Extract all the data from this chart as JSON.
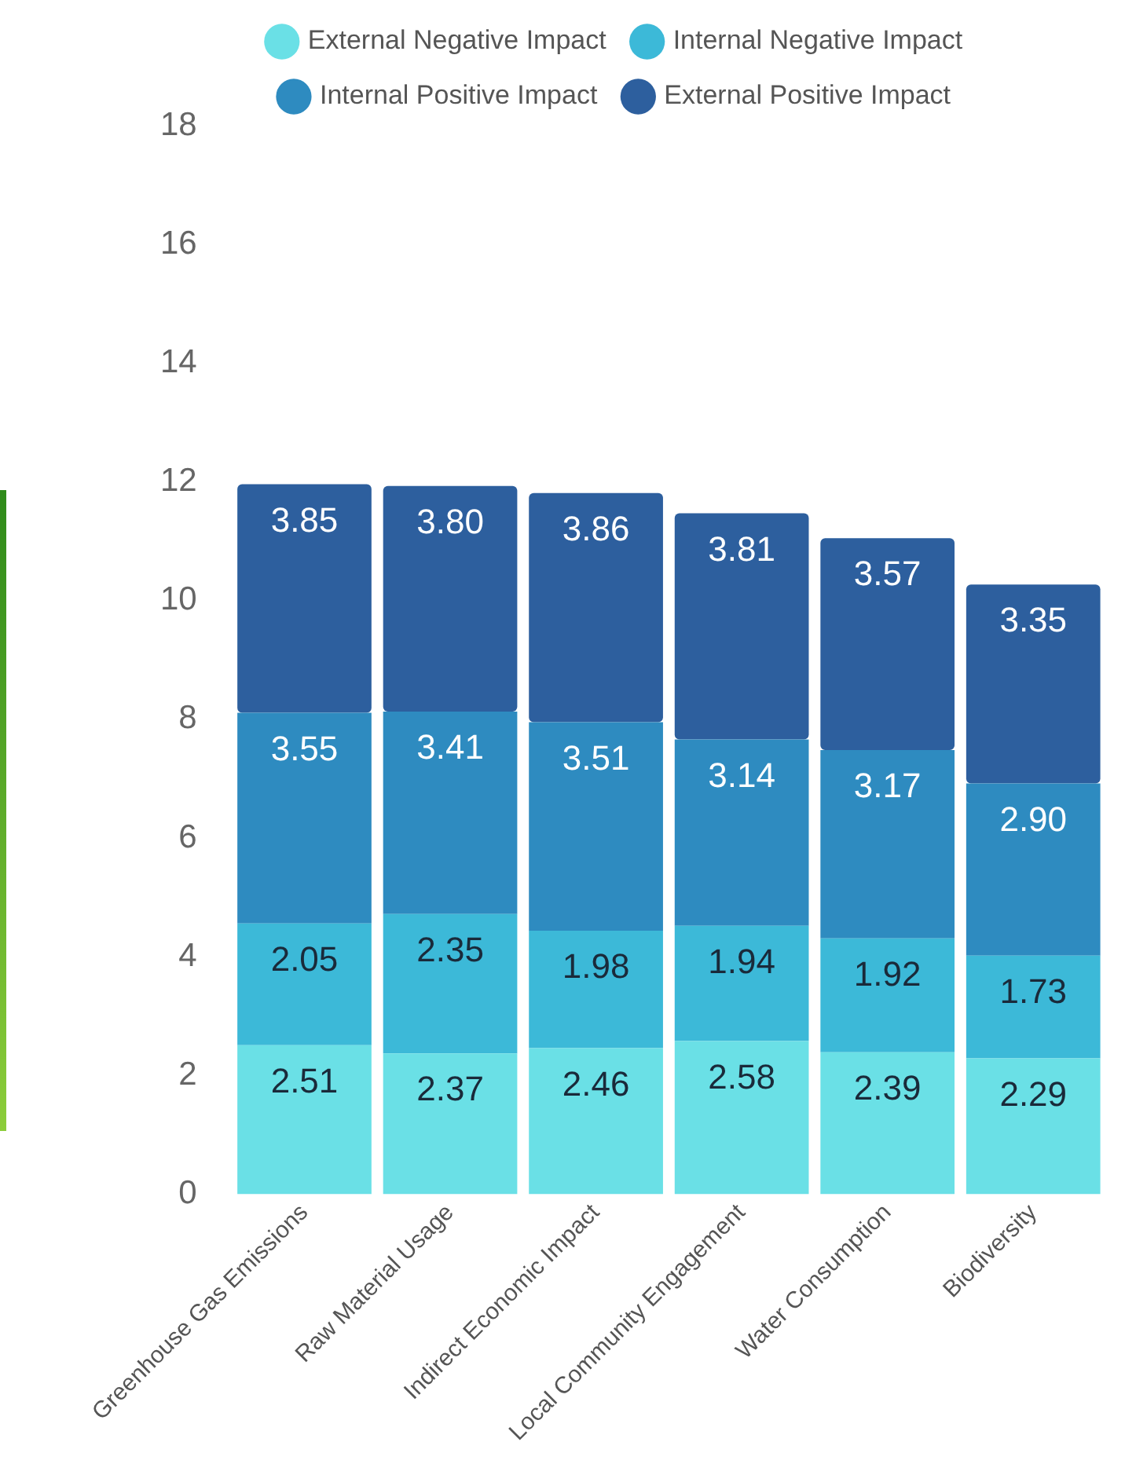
{
  "chart_data": {
    "type": "bar",
    "stacked": true,
    "categories": [
      "Greenhouse Gas Emissions",
      "Raw Material Usage",
      "Indirect Economic Impact",
      "Local Community Engagement",
      "Water Consumption",
      "Biodiversity"
    ],
    "series": [
      {
        "name": "External Negative Impact",
        "color": "#6ae0e6",
        "values": [
          2.51,
          2.37,
          2.46,
          2.58,
          2.39,
          2.29
        ],
        "value_labels": [
          "2.51",
          "2.37",
          "2.46",
          "2.58",
          "2.39",
          "2.29"
        ]
      },
      {
        "name": "Internal Negative Impact",
        "color": "#3cb9d8",
        "values": [
          2.05,
          2.35,
          1.98,
          1.94,
          1.92,
          1.73
        ],
        "value_labels": [
          "2.05",
          "2.35",
          "1.98",
          "1.94",
          "1.92",
          "1.73"
        ]
      },
      {
        "name": "Internal Positive Impact",
        "color": "#2e8bc0",
        "values": [
          3.55,
          3.41,
          3.51,
          3.14,
          3.17,
          2.9
        ],
        "value_labels": [
          "3.55",
          "3.41",
          "3.51",
          "3.14",
          "3.17",
          "2.90"
        ]
      },
      {
        "name": "External Positive Impact",
        "color": "#2d5f9e",
        "values": [
          3.85,
          3.8,
          3.86,
          3.81,
          3.57,
          3.35
        ],
        "value_labels": [
          "3.85",
          "3.80",
          "3.86",
          "3.81",
          "3.57",
          "3.35"
        ]
      }
    ],
    "ylim": [
      0,
      18
    ],
    "yticks": [
      0,
      2,
      4,
      6,
      8,
      10,
      12,
      14,
      16,
      18
    ],
    "grid": false,
    "legend": "top"
  }
}
